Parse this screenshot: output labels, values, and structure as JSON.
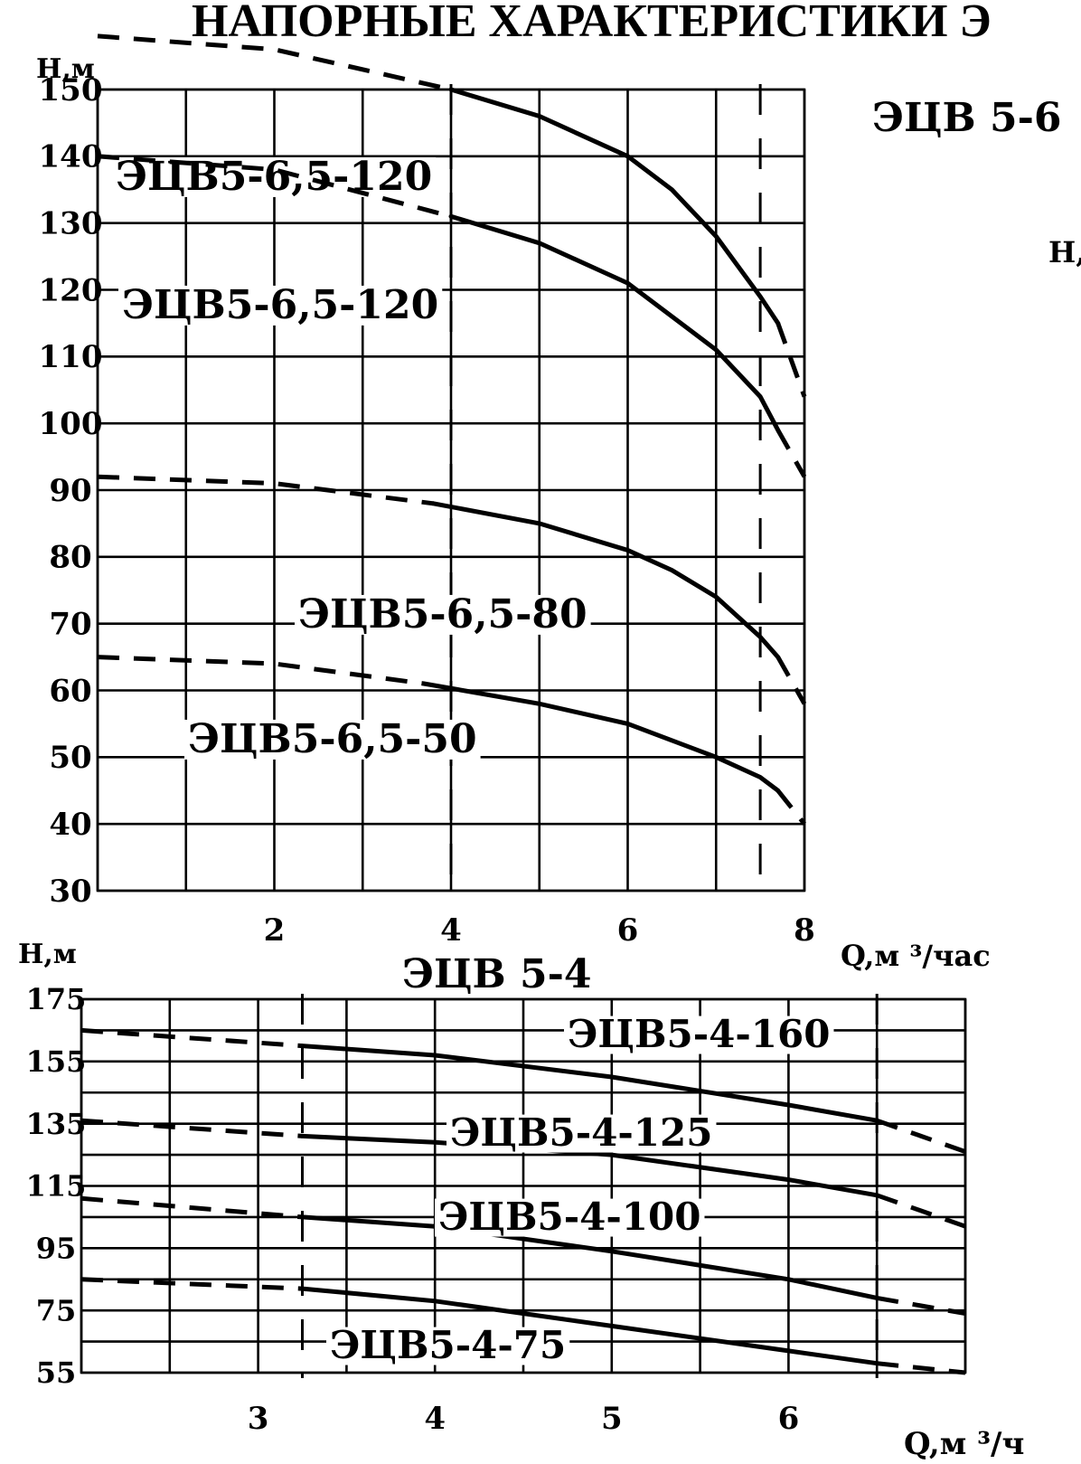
{
  "page": {
    "title": "НАПОРНЫЕ ХАРАКТЕРИСТИКИ Э",
    "right_heading": "ЭЦВ 5-6",
    "right_axis_fragment": "Н,"
  },
  "chart_data": [
    {
      "type": "line",
      "title": "",
      "xlabel": "Q,м ³/час",
      "ylabel": "Н,м",
      "xlim": [
        0,
        8
      ],
      "ylim": [
        30,
        150
      ],
      "x_ticks": [
        "2",
        "4",
        "6",
        "8"
      ],
      "y_ticks": [
        "30",
        "40",
        "50",
        "60",
        "70",
        "80",
        "90",
        "100",
        "110",
        "120",
        "130",
        "140",
        "150"
      ],
      "grid": true,
      "reference_lines_x": [
        4,
        7.5
      ],
      "series": [
        {
          "name": "ЭЦВ5-6,5-120",
          "solid": [
            [
              4,
              150
            ],
            [
              5,
              146
            ],
            [
              6,
              140
            ],
            [
              6.5,
              135
            ],
            [
              7,
              128
            ],
            [
              7.5,
              119
            ],
            [
              7.7,
              115
            ]
          ],
          "dashed_left": [
            [
              0,
              158
            ],
            [
              2,
              156
            ],
            [
              4,
              150
            ]
          ],
          "dashed_right": [
            [
              7.7,
              115
            ],
            [
              8,
              104
            ]
          ]
        },
        {
          "name": "ЭЦВ5-6,5-120",
          "solid": [
            [
              4,
              131
            ],
            [
              5,
              127
            ],
            [
              6,
              121
            ],
            [
              7,
              111
            ],
            [
              7.5,
              104
            ],
            [
              7.7,
              99
            ]
          ],
          "dashed_left": [
            [
              0,
              140
            ],
            [
              2,
              138
            ],
            [
              4,
              131
            ]
          ],
          "dashed_right": [
            [
              7.7,
              99
            ],
            [
              8,
              92
            ]
          ]
        },
        {
          "name": "ЭЦВ5-6,5-80",
          "solid": [
            [
              3.8,
              88
            ],
            [
              5,
              85
            ],
            [
              6,
              81
            ],
            [
              6.5,
              78
            ],
            [
              7,
              74
            ],
            [
              7.5,
              68
            ],
            [
              7.7,
              65
            ]
          ],
          "dashed_left": [
            [
              0,
              92
            ],
            [
              2,
              91
            ],
            [
              3.8,
              88
            ]
          ],
          "dashed_right": [
            [
              7.7,
              65
            ],
            [
              8,
              58
            ]
          ]
        },
        {
          "name": "ЭЦВ5-6,5-50",
          "solid": [
            [
              3.7,
              61
            ],
            [
              5,
              58
            ],
            [
              6,
              55
            ],
            [
              7,
              50
            ],
            [
              7.5,
              47
            ],
            [
              7.7,
              45
            ]
          ],
          "dashed_left": [
            [
              0,
              65
            ],
            [
              2,
              64
            ],
            [
              3.7,
              61
            ]
          ],
          "dashed_right": [
            [
              7.7,
              45
            ],
            [
              8,
              40
            ]
          ]
        }
      ]
    },
    {
      "type": "line",
      "title": "ЭЦВ 5-4",
      "xlabel": "Q,м ³/ч",
      "ylabel": "Н,м",
      "xlim": [
        2,
        7
      ],
      "ylim": [
        55,
        175
      ],
      "x_ticks": [
        "3",
        "4",
        "5",
        "6"
      ],
      "y_ticks": [
        "55",
        "75",
        "95",
        "115",
        "135",
        "155",
        "175"
      ],
      "grid": true,
      "reference_lines_x": [
        3.25,
        6.5
      ],
      "series": [
        {
          "name": "ЭЦВ5-4-160",
          "solid": [
            [
              3.25,
              160
            ],
            [
              4,
              157
            ],
            [
              5,
              150
            ],
            [
              6,
              141
            ],
            [
              6.5,
              136
            ]
          ],
          "dashed_left": [
            [
              2,
              165
            ],
            [
              3.25,
              160
            ]
          ],
          "dashed_right": [
            [
              6.5,
              136
            ],
            [
              7,
              126
            ]
          ]
        },
        {
          "name": "ЭЦВ5-4-125",
          "solid": [
            [
              3.25,
              131
            ],
            [
              4,
              129
            ],
            [
              5,
              125
            ],
            [
              6,
              117
            ],
            [
              6.5,
              112
            ]
          ],
          "dashed_left": [
            [
              2,
              136
            ],
            [
              3.25,
              131
            ]
          ],
          "dashed_right": [
            [
              6.5,
              112
            ],
            [
              7,
              102
            ]
          ]
        },
        {
          "name": "ЭЦВ5-4-100",
          "solid": [
            [
              3.25,
              105
            ],
            [
              4,
              102
            ],
            [
              5,
              94
            ],
            [
              6,
              85
            ],
            [
              6.5,
              79
            ]
          ],
          "dashed_left": [
            [
              2,
              111
            ],
            [
              3.25,
              105
            ]
          ],
          "dashed_right": [
            [
              6.5,
              79
            ],
            [
              7,
              74
            ]
          ]
        },
        {
          "name": "ЭЦВ5-4-75",
          "solid": [
            [
              3.25,
              82
            ],
            [
              4,
              78
            ],
            [
              5,
              70
            ],
            [
              6,
              62
            ],
            [
              6.5,
              58
            ]
          ],
          "dashed_left": [
            [
              2,
              85
            ],
            [
              3.25,
              82
            ]
          ],
          "dashed_right": [
            [
              6.5,
              58
            ],
            [
              7,
              55
            ]
          ]
        }
      ]
    }
  ]
}
